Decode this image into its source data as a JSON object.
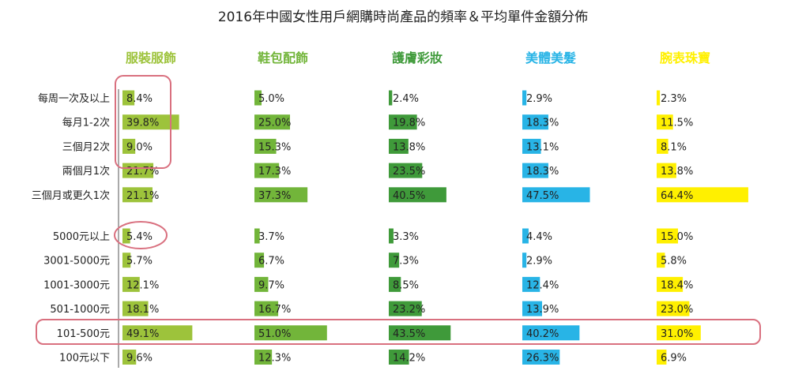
{
  "chart_data": {
    "type": "bar",
    "title": "2016年中國女性用戶網購時尚產品的頻率＆平均單件金額分佈",
    "categories": [
      "服裝服飾",
      "鞋包配飾",
      "護膚彩妝",
      "美體美髮",
      "腕表珠寶"
    ],
    "colors": [
      "#9dc33b",
      "#72b53a",
      "#3f9a3a",
      "#28b4e6",
      "#fff000"
    ],
    "xlim": [
      0,
      100
    ],
    "groups": [
      {
        "name": "frequency",
        "rows": [
          {
            "label": "每周一次及以上",
            "values": [
              8.4,
              5.0,
              2.4,
              2.9,
              2.3
            ]
          },
          {
            "label": "每月1-2次",
            "values": [
              39.8,
              25.0,
              19.8,
              18.3,
              11.5
            ]
          },
          {
            "label": "三個月2次",
            "values": [
              9.0,
              15.3,
              13.8,
              13.1,
              8.1
            ]
          },
          {
            "label": "兩個月1次",
            "values": [
              21.7,
              17.3,
              23.5,
              18.3,
              13.8
            ]
          },
          {
            "label": "三個月或更久1次",
            "values": [
              21.1,
              37.3,
              40.5,
              47.5,
              64.4
            ]
          }
        ]
      },
      {
        "name": "amount",
        "rows": [
          {
            "label": "5000元以上",
            "values": [
              5.4,
              3.7,
              3.3,
              4.4,
              15.0
            ]
          },
          {
            "label": "3001-5000元",
            "values": [
              5.7,
              6.7,
              7.3,
              2.9,
              5.8
            ]
          },
          {
            "label": "1001-3000元",
            "values": [
              12.1,
              9.7,
              8.5,
              12.4,
              18.4
            ]
          },
          {
            "label": "501-1000元",
            "values": [
              18.1,
              16.7,
              23.2,
              13.9,
              23.0
            ]
          },
          {
            "label": "101-500元",
            "values": [
              49.1,
              51.0,
              43.5,
              40.2,
              31.0
            ]
          },
          {
            "label": "100元以下",
            "values": [
              9.6,
              12.3,
              14.2,
              26.3,
              6.9
            ]
          }
        ]
      }
    ],
    "highlight_color": "#d9707f"
  }
}
